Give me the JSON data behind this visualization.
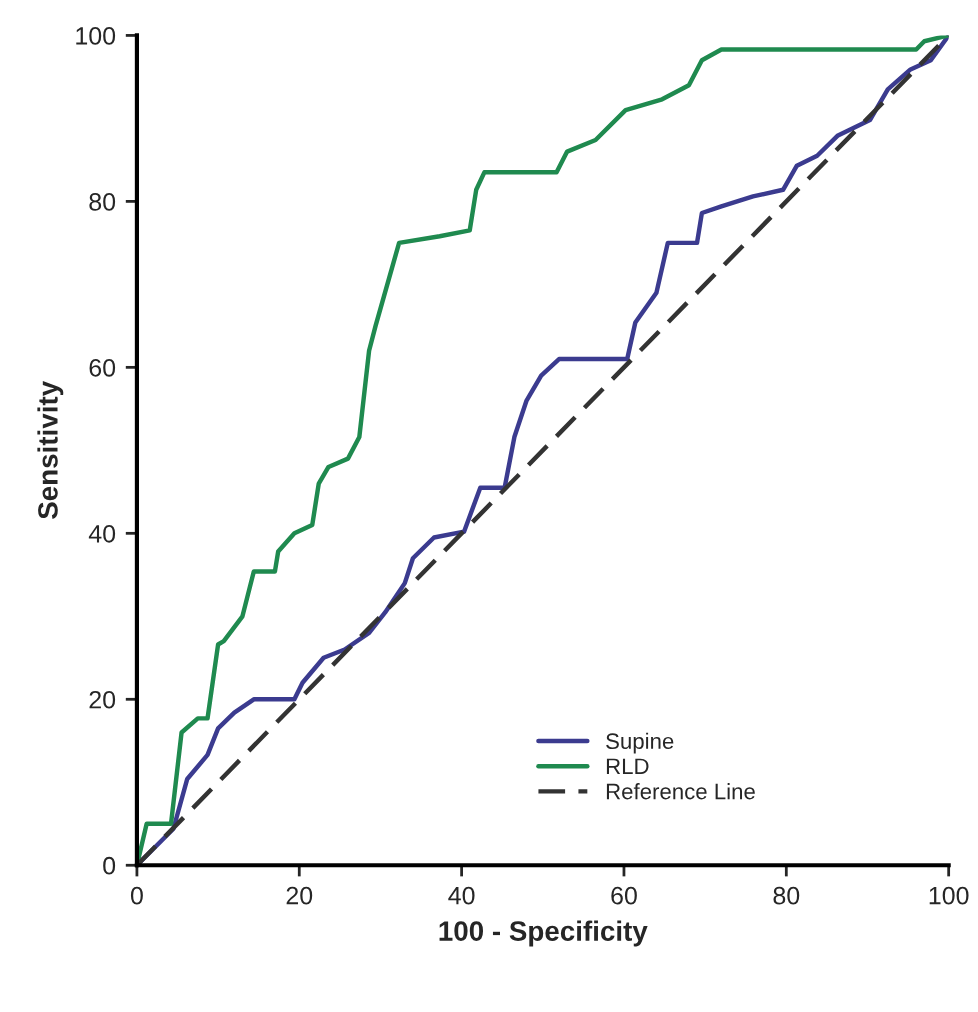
{
  "chart_data": {
    "type": "line",
    "xlabel": "100 - Specificity",
    "ylabel": "Sensitivity",
    "xlim": [
      0,
      100
    ],
    "ylim": [
      0,
      100
    ],
    "xticks": [
      0,
      20,
      40,
      60,
      80,
      100
    ],
    "yticks": [
      0,
      20,
      40,
      60,
      80,
      100
    ],
    "grid": false,
    "legend": "bottom right",
    "marker": "none",
    "series": [
      {
        "name": "Supine",
        "color": "#3b3b8f",
        "line_style": "solid",
        "x": [
          0,
          4.5,
          6.2,
          8.7,
          10,
          12,
          14.4,
          19.4,
          20.4,
          23,
          25.6,
          28.6,
          30.6,
          33,
          34,
          36.6,
          40.3,
          42.3,
          45.3,
          46.5,
          48,
          49.8,
          52,
          57,
          60.4,
          61.4,
          64,
          65.4,
          69,
          69.6,
          72,
          75.9,
          79.6,
          81.3,
          83.8,
          86.3,
          90.3,
          92.5,
          95.3,
          97.8,
          100
        ],
        "values": [
          0,
          4.4,
          10.4,
          13.3,
          16.5,
          18.4,
          20,
          20,
          22,
          25,
          26,
          28,
          30.5,
          34,
          37,
          39.5,
          40.2,
          45.5,
          45.5,
          51.6,
          56,
          59,
          61,
          61,
          61,
          65.4,
          69,
          75,
          75,
          78.6,
          79.4,
          80.6,
          81.4,
          84.3,
          85.5,
          87.9,
          89.8,
          93.5,
          95.9,
          97,
          100
        ]
      },
      {
        "name": "RLD",
        "color": "#1f8a4f",
        "line_style": "solid",
        "x": [
          0,
          1.2,
          4.2,
          5.5,
          7.5,
          8.7,
          10,
          10.7,
          13,
          14.4,
          17,
          17.4,
          19.4,
          21.6,
          22.4,
          23.6,
          26,
          27.4,
          28.6,
          29.4,
          31.6,
          32.3,
          37.3,
          41,
          41.8,
          42.8,
          51.7,
          53,
          56.5,
          60.2,
          64.7,
          68,
          69.6,
          72,
          96,
          97,
          100
        ],
        "values": [
          0,
          5,
          5,
          16,
          17.7,
          17.7,
          26.6,
          27,
          30,
          35.4,
          35.4,
          37.8,
          40,
          41,
          46,
          48,
          49,
          51.6,
          62,
          65,
          72.6,
          75,
          75.8,
          76.5,
          81.4,
          83.5,
          83.5,
          86,
          87.4,
          91,
          92.3,
          94,
          97,
          98.3,
          98.3,
          99.3,
          100
        ]
      },
      {
        "name": "Reference Line",
        "color": "#333333",
        "line_style": "dashed",
        "x": [
          0,
          100
        ],
        "values": [
          0,
          100
        ]
      }
    ]
  }
}
